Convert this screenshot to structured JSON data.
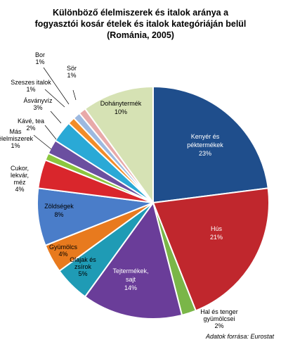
{
  "chart_data": {
    "type": "pie",
    "title_lines": [
      "Különböző élelmiszerek és italok aránya a",
      "fogyasztói kosár ételek és italok kategóriáján belül",
      "(Románia, 2005)"
    ],
    "slices": [
      {
        "name": "Kenyér és péktermékek",
        "label_lines": [
          "Kenyér és",
          "péktermékek"
        ],
        "value_label": "23%",
        "value": 23,
        "color": "#1f4e8c"
      },
      {
        "name": "Hús",
        "label_lines": [
          "Hús"
        ],
        "value_label": "21%",
        "value": 21,
        "color": "#c0272d"
      },
      {
        "name": "Hal és tenger gyümölcsei",
        "label_lines": [
          "Hal és tenger",
          "gyümölcsei"
        ],
        "value_label": "2%",
        "value": 2,
        "color": "#7ab648"
      },
      {
        "name": "Tejtermékek, sajt",
        "label_lines": [
          "Tejtermékek,",
          "sajt"
        ],
        "value_label": "14%",
        "value": 14,
        "color": "#6a3d99"
      },
      {
        "name": "Olajak és zsírok",
        "label_lines": [
          "Olajak és",
          "zsírok"
        ],
        "value_label": "5%",
        "value": 5,
        "color": "#1f9bb5"
      },
      {
        "name": "Gyümölcs",
        "label_lines": [
          "Gyümölcs"
        ],
        "value_label": "4%",
        "value": 4,
        "color": "#e87a1e"
      },
      {
        "name": "Zöldségek",
        "label_lines": [
          "Zöldségek"
        ],
        "value_label": "8%",
        "value": 8,
        "color": "#4a7dc9"
      },
      {
        "name": "Cukor, lekvár, méz",
        "label_lines": [
          "Cukor,",
          "lekvár,",
          "méz"
        ],
        "value_label": "4%",
        "value": 4,
        "color": "#d9262c"
      },
      {
        "name": "Más élelmiszerek",
        "label_lines": [
          "Más",
          "élelmiszerek"
        ],
        "value_label": "1%",
        "value": 1,
        "color": "#8cc63f"
      },
      {
        "name": "Kávé, tea",
        "label_lines": [
          "Kávé, tea"
        ],
        "value_label": "2%",
        "value": 2,
        "color": "#6b4fa0"
      },
      {
        "name": "Ásványvíz",
        "label_lines": [
          "Ásványvíz"
        ],
        "value_label": "3%",
        "value": 3,
        "color": "#2aa9d6"
      },
      {
        "name": "Szeszes italok",
        "label_lines": [
          "Szeszes italok"
        ],
        "value_label": "1%",
        "value": 1,
        "color": "#f28c28"
      },
      {
        "name": "Bor",
        "label_lines": [
          "Bor"
        ],
        "value_label": "1%",
        "value": 1,
        "color": "#9db9e0"
      },
      {
        "name": "Sör",
        "label_lines": [
          "Sör"
        ],
        "value_label": "1%",
        "value": 1,
        "color": "#e8a9a9"
      },
      {
        "name": "Dohánytermék",
        "label_lines": [
          "Dohánytermék"
        ],
        "value_label": "10%",
        "value": 10,
        "color": "#d6e2b4"
      }
    ],
    "start_angle_deg": 0,
    "direction": "clockwise",
    "legend": "none",
    "source": "Adatok forrása: Eurostat"
  }
}
